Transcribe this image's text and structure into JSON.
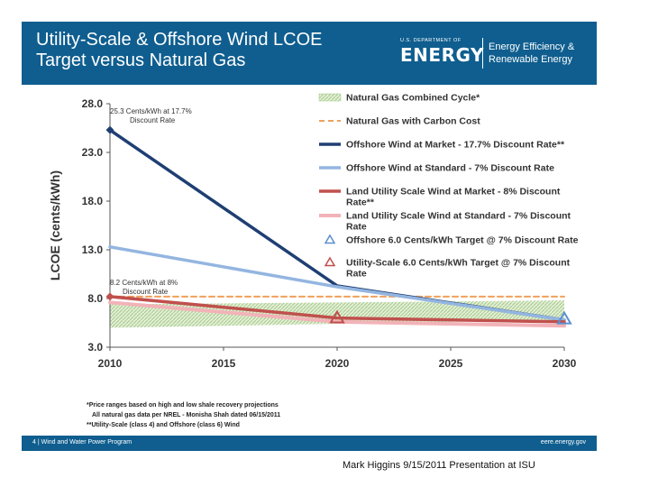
{
  "header": {
    "title": "Utility-Scale & Offshore Wind LCOE\nTarget  versus Natural Gas",
    "logo_dept": "U.S. DEPARTMENT OF",
    "logo_energy": "ENERGY",
    "logo_eere": "Energy Efficiency &\nRenewable Energy"
  },
  "footer": {
    "left": "4 | Wind and Water Power Program",
    "right": "eere.energy.gov"
  },
  "notes": [
    "*Price ranges based on high and low shale recovery projections",
    "All natural gas data per NREL - Monisha Shah dated 06/15/2011",
    "**Utility-Scale (class 4) and Offshore (class 6) Wind"
  ],
  "caption": "Mark Higgins 9/15/2011 Presentation at ISU",
  "chart_data": {
    "type": "line",
    "title": "Utility-Scale & Offshore Wind LCOE Target versus Natural Gas",
    "xlabel": "",
    "ylabel": "LCOE (cents/kWh)",
    "xlim": [
      2010,
      2030
    ],
    "ylim": [
      3.0,
      28.0
    ],
    "x_ticks": [
      2010,
      2015,
      2020,
      2025,
      2030
    ],
    "y_ticks": [
      "3.0",
      "8.0",
      "13.0",
      "18.0",
      "23.0",
      "28.0"
    ],
    "grid": false,
    "legend_position": "top-right",
    "band": {
      "name": "Natural Gas Combined Cycle*",
      "color": "#a6c98a",
      "x": [
        2010,
        2020,
        2030
      ],
      "low": [
        5.0,
        5.4,
        5.8
      ],
      "high": [
        7.4,
        7.6,
        7.8
      ]
    },
    "series": [
      {
        "name": "Natural Gas with Carbon Cost",
        "color": "#f0a05a",
        "style": "dashed",
        "width": 2,
        "x": [
          2010,
          2020,
          2030
        ],
        "values": [
          8.2,
          8.2,
          8.2
        ]
      },
      {
        "name": "Offshore Wind at Market - 17.7% Discount Rate**",
        "color": "#1f3f73",
        "style": "solid",
        "width": 3.5,
        "x": [
          2010,
          2020,
          2030
        ],
        "values": [
          25.3,
          9.3,
          5.8
        ]
      },
      {
        "name": "Offshore Wind at Standard - 7% Discount Rate",
        "color": "#93b5e0",
        "style": "solid",
        "width": 3.5,
        "x": [
          2010,
          2020,
          2030
        ],
        "values": [
          13.3,
          9.2,
          5.8
        ]
      },
      {
        "name": "Land Utility Scale Wind at Market - 8% Discount Rate**",
        "color": "#c0504d",
        "style": "solid",
        "width": 3.5,
        "x": [
          2010,
          2020,
          2030
        ],
        "values": [
          8.2,
          6.0,
          5.6
        ]
      },
      {
        "name": "Land Utility Scale Wind at Standard - 7% Discount Rate",
        "color": "#f2b3b8",
        "style": "solid",
        "width": 4,
        "x": [
          2010,
          2020,
          2030
        ],
        "values": [
          7.6,
          5.6,
          5.2
        ]
      }
    ],
    "markers": [
      {
        "name": "Offshore 6.0 Cents/kWh Target @ 7% Discount Rate",
        "color": "#5b8fd0",
        "x": 2030,
        "y": 5.9
      },
      {
        "name": "Utility-Scale 6.0 Cents/kWh Target @ 7% Discount Rate",
        "color": "#c0504d",
        "x": 2020,
        "y": 6.0
      }
    ],
    "point_markers": [
      {
        "x": 2010,
        "y": 25.3,
        "color": "#1f3f73"
      },
      {
        "x": 2010,
        "y": 8.2,
        "color": "#c0504d"
      }
    ],
    "annotations": [
      {
        "text": "25.3 Cents/kWh at 17.7%",
        "x": 2010,
        "y": 25.3
      },
      {
        "text": "Discount Rate",
        "x": 2010,
        "y": 25.3
      },
      {
        "text": "8.2 Cents/kWh at 8%",
        "x": 2010,
        "y": 8.2
      },
      {
        "text": "Discount Rate",
        "x": 2010,
        "y": 8.2
      }
    ]
  }
}
